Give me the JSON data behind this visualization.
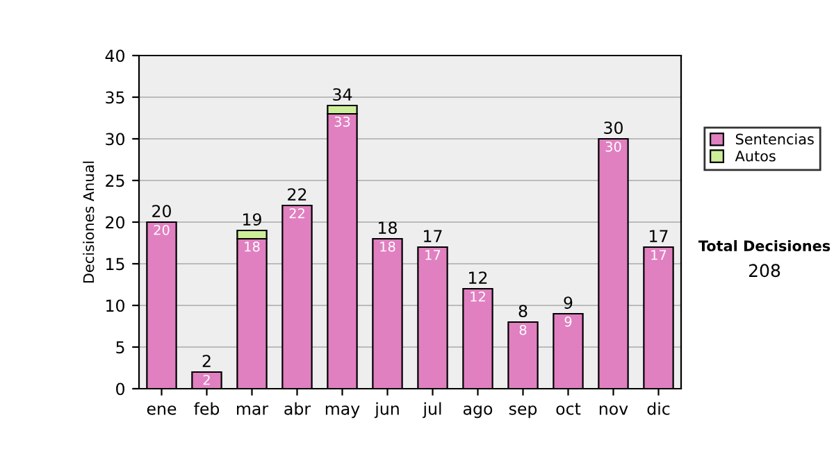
{
  "chart_data": {
    "type": "bar",
    "stacked": true,
    "ylabel": "Decisiones Anual",
    "categories": [
      "ene",
      "feb",
      "mar",
      "abr",
      "may",
      "jun",
      "jul",
      "ago",
      "sep",
      "oct",
      "nov",
      "dic"
    ],
    "series": [
      {
        "name": "Sentencias",
        "color": "#e080c0",
        "values": [
          20,
          2,
          18,
          22,
          33,
          18,
          17,
          12,
          8,
          9,
          30,
          17
        ],
        "value_labels": [
          "20",
          "2",
          "18",
          "22",
          "33",
          "18",
          "17",
          "12",
          "8",
          "9",
          "30",
          "17"
        ]
      },
      {
        "name": "Autos",
        "color": "#ccee99",
        "values": [
          null,
          null,
          1,
          null,
          1,
          null,
          null,
          null,
          null,
          null,
          null,
          null
        ]
      }
    ],
    "totals": [
      "20",
      "2",
      "19",
      "22",
      "34",
      "18",
      "17",
      "12",
      "8",
      "9",
      "30",
      "17"
    ],
    "ylim": [
      0,
      40
    ],
    "yticks": [
      0,
      5,
      10,
      15,
      20,
      25,
      30,
      35,
      40
    ],
    "grid": "y",
    "legend": "right",
    "annotations": [
      "Total Decisiones",
      "208"
    ]
  }
}
